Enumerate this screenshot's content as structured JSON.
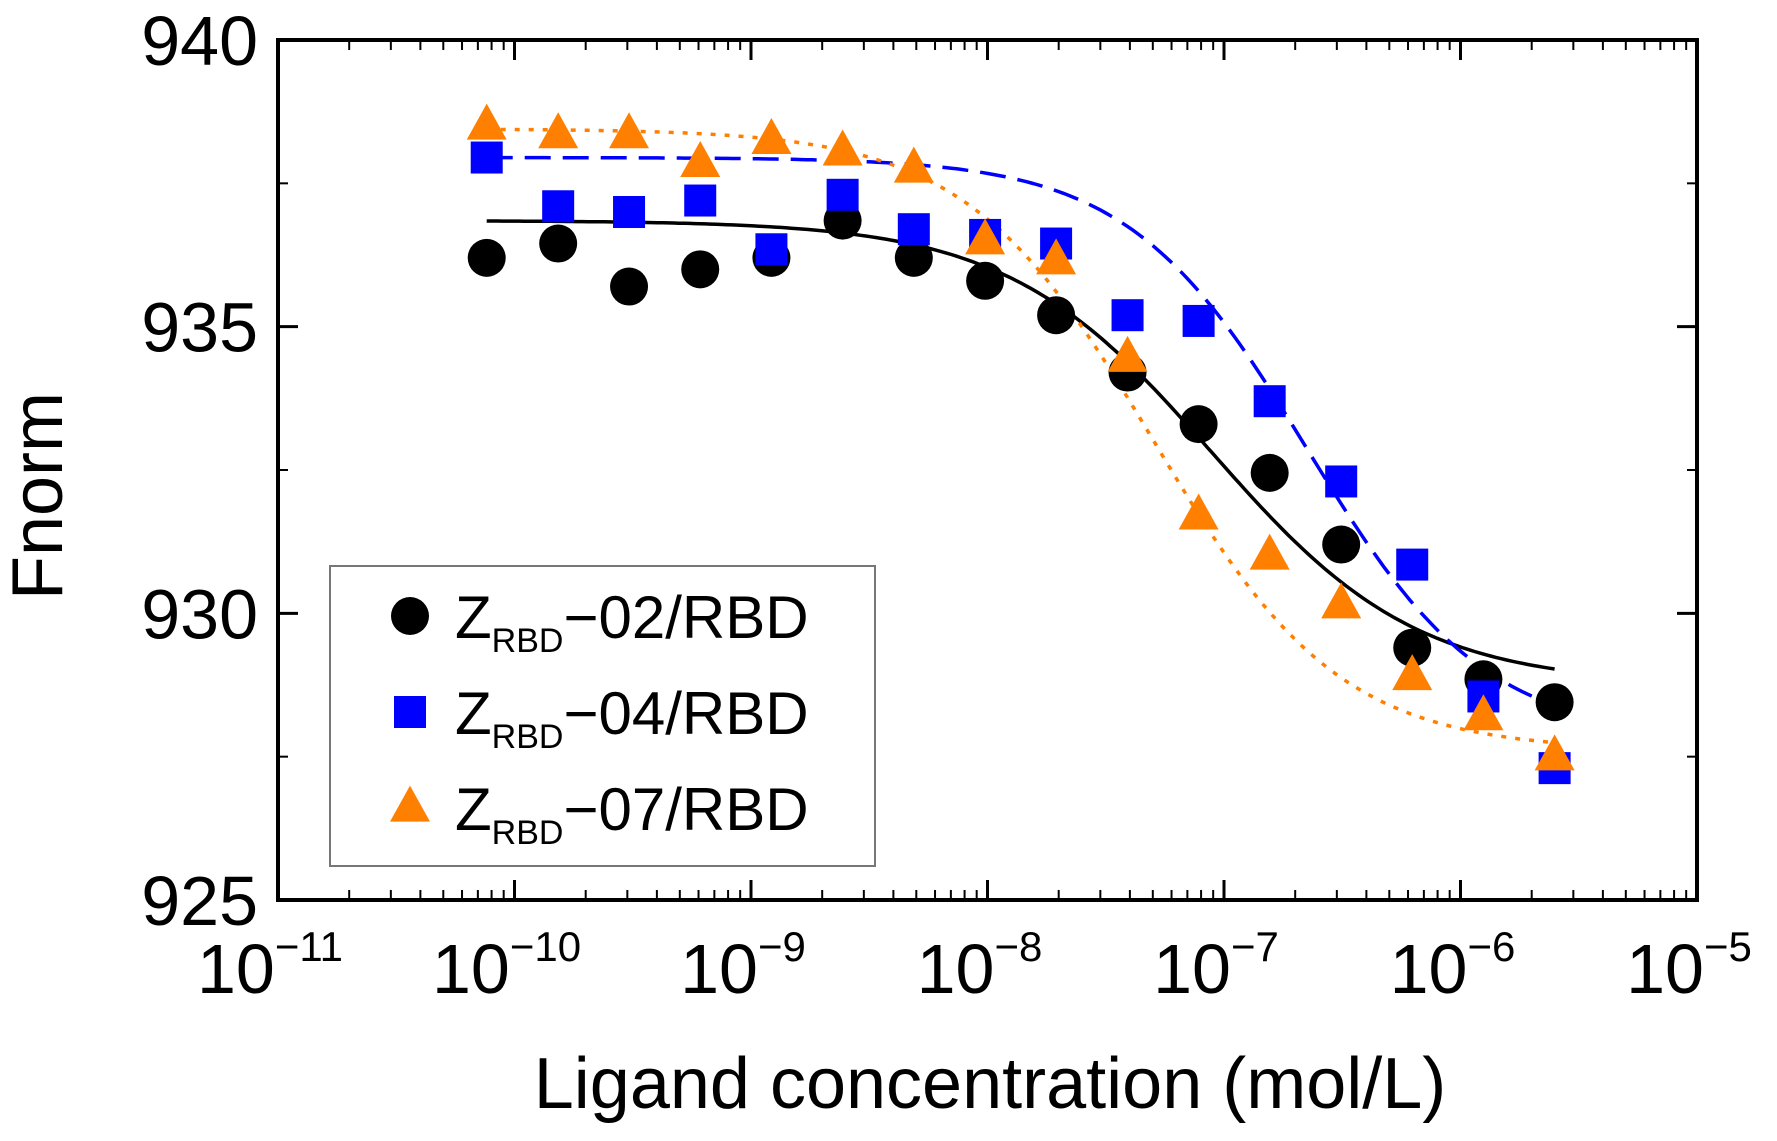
{
  "chart_data": {
    "type": "scatter",
    "xlabel": "Ligand concentration (mol/L)",
    "ylabel": "Fnorm",
    "xscale": "log",
    "xlim": [
      1e-11,
      1e-05
    ],
    "ylim": [
      925,
      940
    ],
    "x_ticks": [
      {
        "base": "10",
        "exp": "−11"
      },
      {
        "base": "10",
        "exp": "−10"
      },
      {
        "base": "10",
        "exp": "−9"
      },
      {
        "base": "10",
        "exp": "−8"
      },
      {
        "base": "10",
        "exp": "−7"
      },
      {
        "base": "10",
        "exp": "−6"
      },
      {
        "base": "10",
        "exp": "−5"
      }
    ],
    "y_ticks": [
      "925",
      "930",
      "935",
      "940"
    ],
    "legend_position": "bottom-left",
    "series": [
      {
        "name": "ZRBD-02/RBD",
        "legend": {
          "main": "Z",
          "sub": "RBD",
          "rest": "−02/RBD"
        },
        "marker": "circle",
        "color": "#000000",
        "fit_style": "solid",
        "fit": {
          "top": 936.85,
          "bottom": 928.75,
          "kd_log": -7.05,
          "hill": 1.0
        },
        "x": [
          7.63e-11,
          1.53e-10,
          3.05e-10,
          6.1e-10,
          1.22e-09,
          2.44e-09,
          4.88e-09,
          9.77e-09,
          1.95e-08,
          3.91e-08,
          7.81e-08,
          1.56e-07,
          3.13e-07,
          6.25e-07,
          1.25e-06,
          2.5e-06
        ],
        "y": [
          936.2,
          936.45,
          935.7,
          936.0,
          936.2,
          936.85,
          936.2,
          935.8,
          935.2,
          934.2,
          933.3,
          932.45,
          931.2,
          929.4,
          928.85,
          928.45
        ]
      },
      {
        "name": "ZRBD-04/RBD",
        "legend": {
          "main": "Z",
          "sub": "RBD",
          "rest": "−04/RBD"
        },
        "marker": "square",
        "color": "#0000ff",
        "fit_style": "dashed",
        "fit": {
          "top": 937.95,
          "bottom": 927.8,
          "kd_log": -6.65,
          "hill": 1.15
        },
        "x": [
          7.63e-11,
          1.53e-10,
          3.05e-10,
          6.1e-10,
          1.22e-09,
          2.44e-09,
          4.88e-09,
          9.77e-09,
          1.95e-08,
          3.91e-08,
          7.81e-08,
          1.56e-07,
          3.13e-07,
          6.25e-07,
          1.25e-06,
          2.5e-06
        ],
        "y": [
          937.95,
          937.1,
          937.0,
          937.2,
          936.35,
          937.3,
          936.7,
          936.6,
          936.45,
          935.2,
          935.1,
          933.7,
          932.3,
          930.85,
          928.55,
          927.3
        ]
      },
      {
        "name": "ZRBD-07/RBD",
        "legend": {
          "main": "Z",
          "sub": "RBD",
          "rest": "−07/RBD"
        },
        "marker": "triangle",
        "color": "#ff8000",
        "fit_style": "dotted",
        "fit": {
          "top": 938.45,
          "bottom": 927.6,
          "kd_log": -7.3,
          "hill": 1.1
        },
        "x": [
          7.63e-11,
          1.53e-10,
          3.05e-10,
          6.1e-10,
          1.22e-09,
          2.44e-09,
          4.88e-09,
          9.77e-09,
          1.95e-08,
          3.91e-08,
          7.81e-08,
          1.56e-07,
          3.13e-07,
          6.25e-07,
          1.25e-06,
          2.5e-06
        ],
        "y": [
          938.5,
          938.35,
          938.35,
          937.85,
          938.25,
          938.05,
          937.75,
          936.5,
          936.15,
          934.45,
          931.7,
          931.0,
          930.15,
          928.9,
          928.2,
          927.5
        ]
      }
    ]
  }
}
